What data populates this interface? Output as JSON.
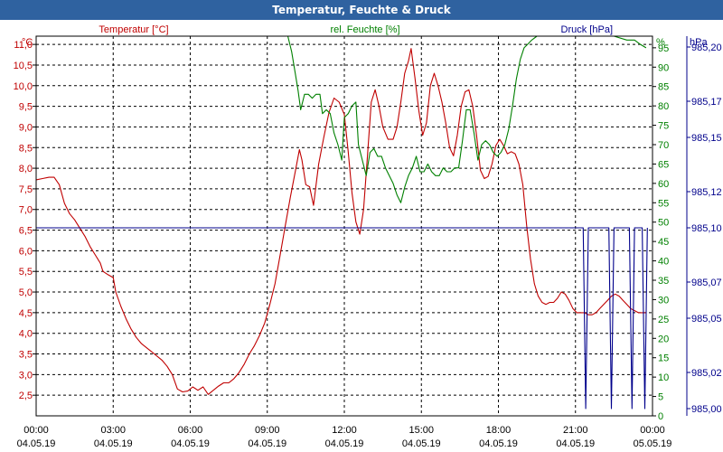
{
  "window": {
    "title": "Temperatur, Feuchte & Druck"
  },
  "chart_data": {
    "type": "line",
    "title": "Temperatur, Feuchte & Druck",
    "grid": true,
    "x_ticks": [
      {
        "t": 0,
        "time": "00:00",
        "date": "04.05.19"
      },
      {
        "t": 3,
        "time": "03:00",
        "date": "04.05.19"
      },
      {
        "t": 6,
        "time": "06:00",
        "date": "04.05.19"
      },
      {
        "t": 9,
        "time": "09:00",
        "date": "04.05.19"
      },
      {
        "t": 12,
        "time": "12:00",
        "date": "04.05.19"
      },
      {
        "t": 15,
        "time": "15:00",
        "date": "04.05.19"
      },
      {
        "t": 18,
        "time": "18:00",
        "date": "04.05.19"
      },
      {
        "t": 21,
        "time": "21:00",
        "date": "04.05.19"
      },
      {
        "t": 24,
        "time": "00:00",
        "date": "05.05.19"
      }
    ],
    "xlim": [
      0,
      24
    ],
    "axes": {
      "temperature": {
        "label": "Temperatur [°C]",
        "unit": "°C",
        "ylim": [
          2.0,
          11.2
        ],
        "ticks": [
          "2,5",
          "3,0",
          "3,5",
          "4,0",
          "4,5",
          "5,0",
          "5,5",
          "6,0",
          "6,5",
          "7,0",
          "7,5",
          "8,0",
          "8,5",
          "9,0",
          "9,5",
          "10,0",
          "10,5",
          "11,0"
        ],
        "color": "#c00000"
      },
      "humidity": {
        "label": "rel. Feuchte [%]",
        "unit": "%",
        "ylim": [
          0,
          98
        ],
        "ticks": [
          "0",
          "5",
          "10",
          "15",
          "20",
          "25",
          "30",
          "35",
          "40",
          "45",
          "50",
          "55",
          "60",
          "65",
          "70",
          "75",
          "80",
          "85",
          "90",
          "95"
        ],
        "color": "#008000"
      },
      "pressure": {
        "label": "Druck [hPa]",
        "unit": "hPa",
        "ylim": [
          984.996,
          985.206
        ],
        "ticks": [
          "985,00",
          "985,02",
          "985,05",
          "985,07",
          "985,10",
          "985,12",
          "985,15",
          "985,17",
          "985,20"
        ],
        "color": "#00008b"
      }
    },
    "series": [
      {
        "name": "Temperatur [°C]",
        "axis": "temperature",
        "color": "#c00000",
        "points": [
          [
            0.0,
            7.72
          ],
          [
            0.25,
            7.75
          ],
          [
            0.5,
            7.78
          ],
          [
            0.7,
            7.78
          ],
          [
            0.9,
            7.6
          ],
          [
            1.1,
            7.15
          ],
          [
            1.3,
            6.9
          ],
          [
            1.5,
            6.75
          ],
          [
            1.7,
            6.55
          ],
          [
            1.9,
            6.35
          ],
          [
            2.1,
            6.1
          ],
          [
            2.3,
            5.9
          ],
          [
            2.5,
            5.7
          ],
          [
            2.6,
            5.5
          ],
          [
            2.8,
            5.42
          ],
          [
            3.0,
            5.35
          ],
          [
            3.1,
            5.0
          ],
          [
            3.3,
            4.65
          ],
          [
            3.5,
            4.35
          ],
          [
            3.7,
            4.1
          ],
          [
            3.9,
            3.9
          ],
          [
            4.1,
            3.75
          ],
          [
            4.3,
            3.65
          ],
          [
            4.5,
            3.55
          ],
          [
            4.7,
            3.45
          ],
          [
            4.9,
            3.35
          ],
          [
            5.1,
            3.2
          ],
          [
            5.3,
            3.0
          ],
          [
            5.5,
            2.65
          ],
          [
            5.7,
            2.58
          ],
          [
            5.9,
            2.6
          ],
          [
            6.1,
            2.7
          ],
          [
            6.3,
            2.62
          ],
          [
            6.5,
            2.7
          ],
          [
            6.7,
            2.52
          ],
          [
            6.9,
            2.62
          ],
          [
            7.1,
            2.72
          ],
          [
            7.3,
            2.8
          ],
          [
            7.5,
            2.8
          ],
          [
            7.7,
            2.9
          ],
          [
            7.9,
            3.05
          ],
          [
            8.1,
            3.25
          ],
          [
            8.3,
            3.5
          ],
          [
            8.5,
            3.7
          ],
          [
            8.7,
            3.95
          ],
          [
            8.9,
            4.25
          ],
          [
            9.1,
            4.7
          ],
          [
            9.3,
            5.2
          ],
          [
            9.5,
            5.9
          ],
          [
            9.7,
            6.6
          ],
          [
            9.9,
            7.3
          ],
          [
            10.1,
            7.95
          ],
          [
            10.25,
            8.45
          ],
          [
            10.35,
            8.2
          ],
          [
            10.5,
            7.6
          ],
          [
            10.65,
            7.55
          ],
          [
            10.8,
            7.1
          ],
          [
            11.0,
            8.1
          ],
          [
            11.2,
            8.75
          ],
          [
            11.4,
            9.35
          ],
          [
            11.6,
            9.7
          ],
          [
            11.8,
            9.6
          ],
          [
            12.0,
            9.3
          ],
          [
            12.15,
            8.4
          ],
          [
            12.3,
            7.4
          ],
          [
            12.45,
            6.7
          ],
          [
            12.6,
            6.4
          ],
          [
            12.75,
            7.0
          ],
          [
            12.9,
            8.3
          ],
          [
            13.05,
            9.6
          ],
          [
            13.2,
            9.9
          ],
          [
            13.35,
            9.5
          ],
          [
            13.5,
            9.0
          ],
          [
            13.7,
            8.7
          ],
          [
            13.9,
            8.7
          ],
          [
            14.05,
            9.0
          ],
          [
            14.2,
            9.6
          ],
          [
            14.35,
            10.3
          ],
          [
            14.5,
            10.6
          ],
          [
            14.6,
            10.9
          ],
          [
            14.75,
            10.2
          ],
          [
            14.9,
            9.4
          ],
          [
            15.05,
            8.8
          ],
          [
            15.2,
            9.1
          ],
          [
            15.35,
            10.0
          ],
          [
            15.5,
            10.3
          ],
          [
            15.65,
            10.0
          ],
          [
            15.8,
            9.6
          ],
          [
            15.95,
            9.1
          ],
          [
            16.1,
            8.5
          ],
          [
            16.25,
            8.3
          ],
          [
            16.4,
            8.8
          ],
          [
            16.55,
            9.5
          ],
          [
            16.7,
            9.85
          ],
          [
            16.85,
            9.9
          ],
          [
            17.0,
            9.5
          ],
          [
            17.15,
            8.8
          ],
          [
            17.3,
            7.95
          ],
          [
            17.45,
            7.75
          ],
          [
            17.6,
            7.8
          ],
          [
            17.75,
            8.1
          ],
          [
            17.9,
            8.55
          ],
          [
            18.05,
            8.7
          ],
          [
            18.2,
            8.55
          ],
          [
            18.35,
            8.35
          ],
          [
            18.5,
            8.4
          ],
          [
            18.65,
            8.35
          ],
          [
            18.8,
            8.1
          ],
          [
            18.95,
            7.6
          ],
          [
            19.1,
            6.6
          ],
          [
            19.25,
            5.8
          ],
          [
            19.4,
            5.2
          ],
          [
            19.55,
            4.9
          ],
          [
            19.7,
            4.75
          ],
          [
            19.85,
            4.7
          ],
          [
            20.0,
            4.75
          ],
          [
            20.15,
            4.75
          ],
          [
            20.3,
            4.85
          ],
          [
            20.45,
            5.0
          ],
          [
            20.6,
            4.95
          ],
          [
            20.75,
            4.8
          ],
          [
            20.9,
            4.6
          ],
          [
            21.05,
            4.5
          ],
          [
            21.2,
            4.5
          ],
          [
            21.35,
            4.5
          ],
          [
            21.5,
            4.45
          ],
          [
            21.65,
            4.45
          ],
          [
            21.8,
            4.5
          ],
          [
            21.95,
            4.6
          ],
          [
            22.1,
            4.7
          ],
          [
            22.25,
            4.8
          ],
          [
            22.4,
            4.9
          ],
          [
            22.55,
            4.95
          ],
          [
            22.7,
            4.9
          ],
          [
            22.85,
            4.8
          ],
          [
            23.0,
            4.7
          ],
          [
            23.15,
            4.6
          ],
          [
            23.3,
            4.55
          ],
          [
            23.45,
            4.5
          ],
          [
            23.6,
            4.5
          ],
          [
            23.75,
            4.5
          ]
        ]
      },
      {
        "name": "rel. Feuchte [%]",
        "axis": "humidity",
        "color": "#008000",
        "points": [
          [
            0.0,
            98
          ],
          [
            1.9,
            98
          ],
          [
            1.95,
            98
          ],
          [
            9.8,
            98
          ],
          [
            9.95,
            94
          ],
          [
            10.1,
            88
          ],
          [
            10.2,
            84
          ],
          [
            10.3,
            79
          ],
          [
            10.45,
            83
          ],
          [
            10.6,
            83
          ],
          [
            10.75,
            82
          ],
          [
            10.9,
            83
          ],
          [
            11.05,
            83
          ],
          [
            11.15,
            78
          ],
          [
            11.3,
            79
          ],
          [
            11.45,
            78
          ],
          [
            11.6,
            73
          ],
          [
            11.75,
            70
          ],
          [
            11.9,
            66
          ],
          [
            12.0,
            77
          ],
          [
            12.15,
            78
          ],
          [
            12.3,
            80
          ],
          [
            12.45,
            81
          ],
          [
            12.55,
            70
          ],
          [
            12.7,
            66
          ],
          [
            12.85,
            62
          ],
          [
            13.0,
            68
          ],
          [
            13.15,
            69
          ],
          [
            13.3,
            67
          ],
          [
            13.45,
            67
          ],
          [
            13.6,
            64
          ],
          [
            13.75,
            62
          ],
          [
            13.9,
            60
          ],
          [
            14.05,
            57
          ],
          [
            14.2,
            55
          ],
          [
            14.35,
            59
          ],
          [
            14.5,
            62
          ],
          [
            14.65,
            64
          ],
          [
            14.8,
            67
          ],
          [
            14.95,
            63
          ],
          [
            15.1,
            63
          ],
          [
            15.25,
            65
          ],
          [
            15.4,
            63
          ],
          [
            15.55,
            62
          ],
          [
            15.7,
            62
          ],
          [
            15.85,
            64
          ],
          [
            16.0,
            63
          ],
          [
            16.15,
            63
          ],
          [
            16.3,
            64
          ],
          [
            16.45,
            64
          ],
          [
            16.6,
            71
          ],
          [
            16.75,
            79
          ],
          [
            16.9,
            79
          ],
          [
            17.05,
            73
          ],
          [
            17.2,
            66
          ],
          [
            17.35,
            70
          ],
          [
            17.5,
            71
          ],
          [
            17.65,
            70
          ],
          [
            17.8,
            68
          ],
          [
            17.95,
            67
          ],
          [
            18.1,
            68
          ],
          [
            18.25,
            70
          ],
          [
            18.4,
            74
          ],
          [
            18.55,
            80
          ],
          [
            18.7,
            87
          ],
          [
            18.85,
            92
          ],
          [
            19.0,
            95
          ],
          [
            19.15,
            96
          ],
          [
            19.3,
            97
          ],
          [
            19.5,
            98
          ],
          [
            20.5,
            98
          ],
          [
            21.5,
            98
          ],
          [
            22.5,
            98
          ],
          [
            23.0,
            97
          ],
          [
            23.3,
            97
          ],
          [
            23.5,
            96
          ],
          [
            23.75,
            95
          ]
        ]
      },
      {
        "name": "Druck [hPa]",
        "axis": "pressure",
        "color": "#00008b",
        "points": [
          [
            0.0,
            985.1
          ],
          [
            21.3,
            985.1
          ],
          [
            21.4,
            985.0
          ],
          [
            21.5,
            985.1
          ],
          [
            22.3,
            985.1
          ],
          [
            22.4,
            985.0
          ],
          [
            22.5,
            985.1
          ],
          [
            22.7,
            985.1
          ],
          [
            22.8,
            985.1
          ],
          [
            23.1,
            985.1
          ],
          [
            23.2,
            985.0
          ],
          [
            23.3,
            985.1
          ],
          [
            23.6,
            985.1
          ],
          [
            23.7,
            985.0
          ],
          [
            23.8,
            985.1
          ]
        ]
      }
    ]
  }
}
